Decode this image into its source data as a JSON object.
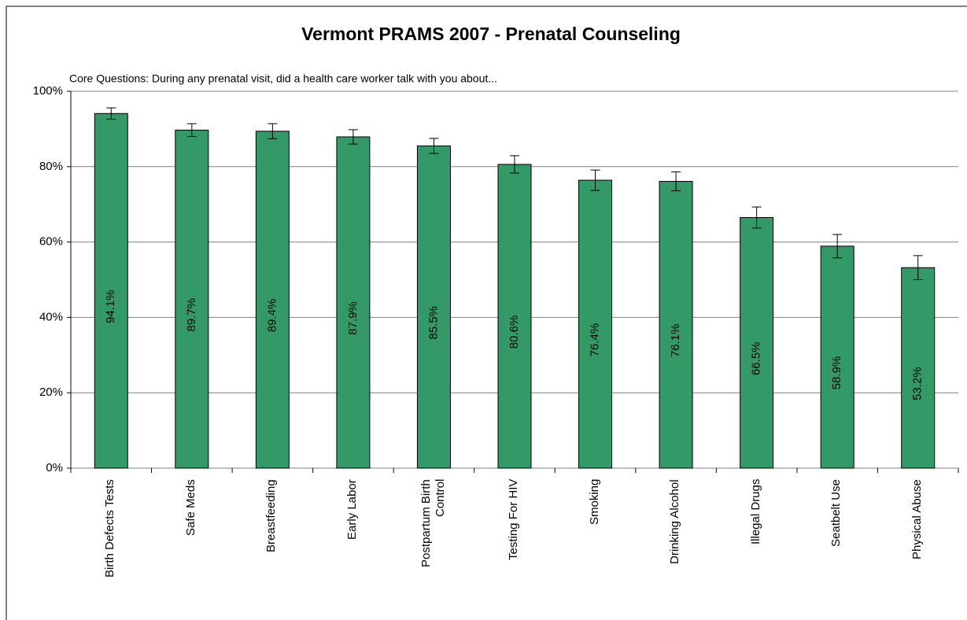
{
  "chart_data": {
    "type": "bar",
    "title": "Vermont PRAMS 2007 - Prenatal Counseling",
    "subtitle": "Core Questions: During any prenatal visit, did a health care worker talk with you about...",
    "categories": [
      "Birth Defects Tests",
      "Safe Meds",
      "Breastfeeding",
      "Early Labor",
      "Postpartum Birth Control",
      "Testing For HIV",
      "Smoking",
      "Drinking Alcohol",
      "Illegal Drugs",
      "Seatbelt Use",
      "Physical Abuse"
    ],
    "values": [
      94.1,
      89.7,
      89.4,
      87.9,
      85.5,
      80.6,
      76.4,
      76.1,
      66.5,
      58.9,
      53.2
    ],
    "value_labels": [
      "94.1%",
      "89.7%",
      "89.4%",
      "87.9%",
      "85.5%",
      "80.6%",
      "76.4%",
      "76.1%",
      "66.5%",
      "58.9%",
      "53.2%"
    ],
    "errors": [
      1.5,
      1.7,
      2.0,
      1.9,
      2.0,
      2.3,
      2.7,
      2.5,
      2.8,
      3.1,
      3.2
    ],
    "color": "#339966",
    "ylim": [
      0,
      100
    ],
    "yticks": [
      {
        "value": 0,
        "label": "0%"
      },
      {
        "value": 20,
        "label": "20%"
      },
      {
        "value": 40,
        "label": "40%"
      },
      {
        "value": 60,
        "label": "60%"
      },
      {
        "value": 80,
        "label": "80%"
      },
      {
        "value": 100,
        "label": "100%"
      }
    ],
    "grid": true
  }
}
